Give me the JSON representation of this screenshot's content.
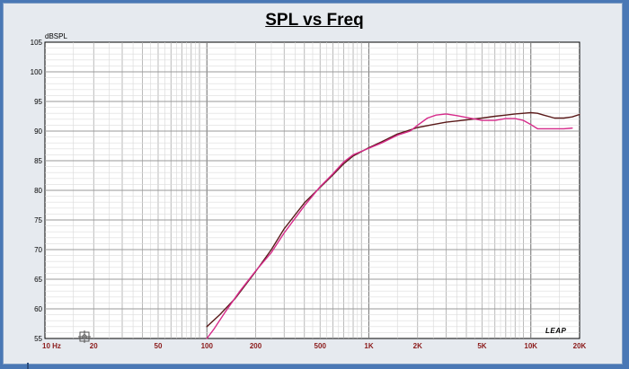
{
  "chart_data": {
    "type": "line",
    "title": "SPL vs Freq",
    "ylabel": "dBSPL",
    "xscale": "log",
    "xlim": [
      10,
      20000
    ],
    "ylim": [
      55,
      105
    ],
    "yticks": [
      55,
      60,
      65,
      70,
      75,
      80,
      85,
      90,
      95,
      100,
      105
    ],
    "xtick_values": [
      10,
      20,
      50,
      100,
      200,
      500,
      1000,
      2000,
      5000,
      10000,
      20000
    ],
    "xtick_labels": [
      "10 Hz",
      "20",
      "50",
      "100",
      "200",
      "500",
      "1K",
      "2K",
      "5K",
      "10K",
      "20K"
    ],
    "grid": true,
    "watermark": "LEAP",
    "series": [
      {
        "color": "#5a1a1a",
        "x": [
          100,
          120,
          150,
          200,
          250,
          300,
          400,
          500,
          600,
          700,
          800,
          1000,
          1200,
          1500,
          2000,
          2500,
          3000,
          4000,
          5000,
          6000,
          7000,
          8000,
          9000,
          10000,
          11000,
          12000,
          14000,
          16000,
          18000,
          20000
        ],
        "y": [
          57.0,
          59.0,
          61.8,
          66.3,
          70.0,
          73.5,
          77.9,
          80.5,
          82.6,
          84.5,
          85.8,
          87.2,
          88.2,
          89.5,
          90.6,
          91.1,
          91.5,
          91.9,
          92.2,
          92.5,
          92.7,
          92.9,
          93.0,
          93.1,
          93.0,
          92.7,
          92.2,
          92.2,
          92.4,
          92.8
        ]
      },
      {
        "color": "#d62a8a",
        "x": [
          100,
          110,
          130,
          160,
          200,
          250,
          300,
          400,
          500,
          600,
          700,
          800,
          1000,
          1200,
          1500,
          1800,
          2000,
          2300,
          2600,
          3000,
          3500,
          4000,
          5000,
          6000,
          7000,
          8000,
          9000,
          10000,
          11000,
          12000,
          14000,
          16000,
          18000
        ],
        "y": [
          55.0,
          56.5,
          59.5,
          63.0,
          66.4,
          69.5,
          72.8,
          77.4,
          80.6,
          82.8,
          84.8,
          86.0,
          87.1,
          88.0,
          89.3,
          90.0,
          91.0,
          92.2,
          92.7,
          92.9,
          92.6,
          92.3,
          91.8,
          91.8,
          92.1,
          92.1,
          91.8,
          91.1,
          90.4,
          90.4,
          90.4,
          90.4,
          90.5
        ]
      }
    ]
  }
}
